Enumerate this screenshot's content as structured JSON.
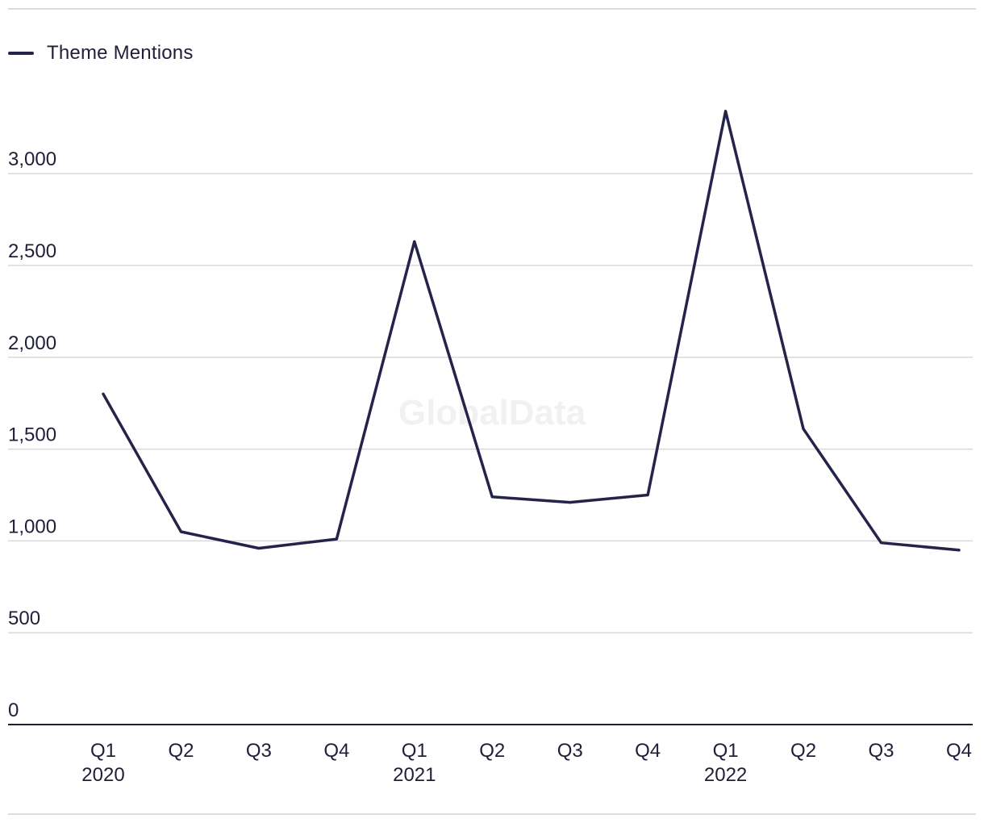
{
  "legend": {
    "label": "Theme Mentions"
  },
  "watermark": "GlobalData",
  "colors": {
    "line": "#24244a",
    "grid": "#d9d9d9",
    "axis": "#1f1f3a"
  },
  "chart_data": {
    "type": "line",
    "title": "",
    "xlabel": "",
    "ylabel": "",
    "ylim": [
      0,
      3500
    ],
    "yticks": [
      0,
      500,
      1000,
      1500,
      2000,
      2500,
      3000
    ],
    "ytick_labels": [
      "0",
      "500",
      "1,000",
      "1,500",
      "2,000",
      "2,500",
      "3,000"
    ],
    "grid": true,
    "legend_position": "top-left",
    "categories": [
      "Q1 2020",
      "Q2 2020",
      "Q3 2020",
      "Q4 2020",
      "Q1 2021",
      "Q2 2021",
      "Q3 2021",
      "Q4 2021",
      "Q1 2022",
      "Q2 2022",
      "Q3 2022",
      "Q4 2022"
    ],
    "category_labels": [
      {
        "quarter": "Q1",
        "year": "2020"
      },
      {
        "quarter": "Q2",
        "year": ""
      },
      {
        "quarter": "Q3",
        "year": ""
      },
      {
        "quarter": "Q4",
        "year": ""
      },
      {
        "quarter": "Q1",
        "year": "2021"
      },
      {
        "quarter": "Q2",
        "year": ""
      },
      {
        "quarter": "Q3",
        "year": ""
      },
      {
        "quarter": "Q4",
        "year": ""
      },
      {
        "quarter": "Q1",
        "year": "2022"
      },
      {
        "quarter": "Q2",
        "year": ""
      },
      {
        "quarter": "Q3",
        "year": ""
      },
      {
        "quarter": "Q4",
        "year": ""
      }
    ],
    "series": [
      {
        "name": "Theme Mentions",
        "values": [
          1800,
          1050,
          960,
          1010,
          2630,
          1240,
          1210,
          1250,
          3340,
          1610,
          990,
          950
        ]
      }
    ]
  }
}
